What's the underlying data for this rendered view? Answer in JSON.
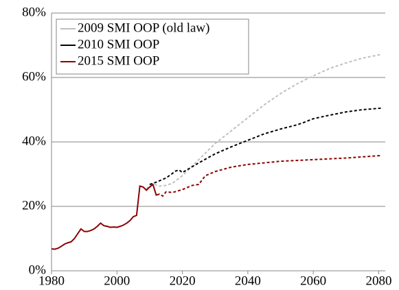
{
  "chart_data": {
    "type": "line",
    "xlim": [
      1980,
      2082
    ],
    "xticks": [
      1980,
      2000,
      2020,
      2040,
      2060,
      2080
    ],
    "ylim": [
      0,
      80
    ],
    "yticks": [
      {
        "value": 0,
        "label": "0%"
      },
      {
        "value": 20,
        "label": "20%"
      },
      {
        "value": 40,
        "label": "40%"
      },
      {
        "value": 60,
        "label": "60%"
      },
      {
        "value": 80,
        "label": "80%"
      }
    ],
    "grid": true,
    "legend": "upper left",
    "series": [
      {
        "name": "2009 SMI OOP (old law)",
        "color": "#bfbfbf",
        "dash_from": 2009,
        "x": [
          2009,
          2011,
          2013,
          2015,
          2017,
          2020,
          2025,
          2030,
          2035,
          2040,
          2045,
          2050,
          2055,
          2060,
          2065,
          2070,
          2075,
          2081
        ],
        "values": [
          25.5,
          27.0,
          26.3,
          26.5,
          27.2,
          29.5,
          34.5,
          39.5,
          43.5,
          47.5,
          51.5,
          55,
          58,
          60.5,
          62.8,
          64.5,
          66,
          67.2
        ]
      },
      {
        "name": "2010 SMI OOP",
        "color": "#000000",
        "dash_from": 2010,
        "x": [
          2010,
          2012,
          2015,
          2018,
          2019,
          2020,
          2025,
          2030,
          2035,
          2040,
          2045,
          2050,
          2055,
          2057,
          2060,
          2065,
          2070,
          2075,
          2081
        ],
        "values": [
          26.8,
          27.5,
          28.8,
          31.0,
          31.3,
          30.5,
          33.5,
          36.3,
          38.5,
          40.5,
          42.5,
          44.0,
          45.3,
          46,
          47.2,
          48.3,
          49.3,
          50,
          50.5
        ]
      },
      {
        "name": "2015 SMI OOP",
        "color": "#8b0000",
        "dash_from": 2013,
        "x": [
          1980,
          1981,
          1982,
          1983,
          1984,
          1985,
          1986,
          1987,
          1988,
          1989,
          1990,
          1991,
          1992,
          1993,
          1994,
          1995,
          1996,
          1997,
          1998,
          1999,
          2000,
          2001,
          2002,
          2003,
          2004,
          2005,
          2006,
          2007,
          2008,
          2009,
          2010,
          2011,
          2012,
          2013,
          2014,
          2015,
          2017,
          2020,
          2023,
          2025,
          2027,
          2030,
          2035,
          2040,
          2050,
          2060,
          2070,
          2081
        ],
        "values": [
          6.8,
          6.7,
          7.0,
          7.6,
          8.3,
          8.7,
          9.0,
          10.0,
          11.5,
          13.0,
          12.2,
          12.2,
          12.5,
          13.0,
          13.8,
          14.8,
          14.0,
          13.8,
          13.5,
          13.6,
          13.5,
          13.8,
          14.2,
          14.8,
          15.6,
          16.8,
          17.2,
          26.3,
          26.0,
          25.0,
          26.0,
          26.8,
          23.5,
          23.8,
          23.2,
          24.5,
          24.3,
          25.2,
          26.5,
          26.8,
          29.5,
          30.8,
          32.2,
          33.0,
          34.0,
          34.5,
          35.0,
          35.8
        ]
      }
    ]
  }
}
